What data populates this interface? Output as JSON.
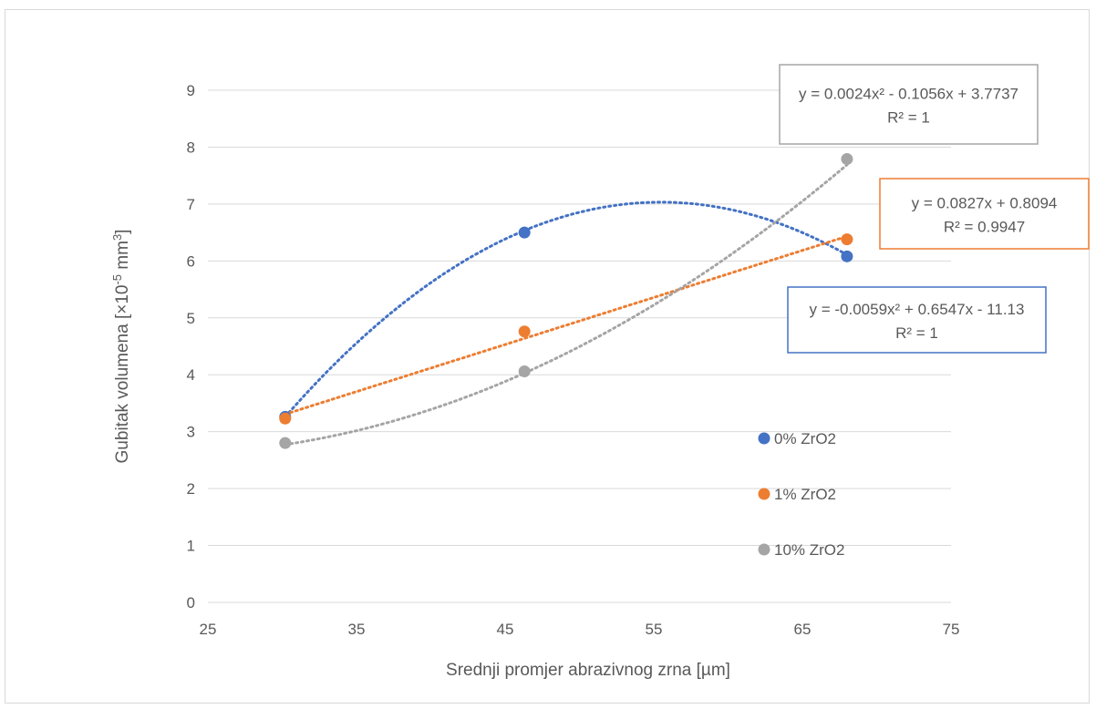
{
  "chart_data": {
    "type": "scatter",
    "title": "",
    "xlabel": "Srednji promjer abrazivnog zrna [µm]",
    "ylabel": "Gubitak volumena [×10",
    "ylabel_sup": "-5",
    "ylabel_unit": " mm",
    "ylabel_unit_sup": "3",
    "ylabel_close": "]",
    "xlim": [
      25,
      75
    ],
    "ylim": [
      0,
      9
    ],
    "xticks": [
      25,
      35,
      45,
      55,
      65,
      75
    ],
    "yticks": [
      0,
      1,
      2,
      3,
      4,
      5,
      6,
      7,
      8,
      9
    ],
    "grid": "horizontal",
    "legend_position": "inside-right",
    "series": [
      {
        "name": "0% ZrO2",
        "color": "#4472c4",
        "x": [
          30.2,
          46.3,
          68
        ],
        "y": [
          3.26,
          6.5,
          6.08
        ],
        "trendline": {
          "type": "polynomial",
          "coef": [
            -0.0059,
            0.6547,
            -11.13
          ],
          "equation": "y = -0.0059x² + 0.6547x - 11.13",
          "r2": "R² = 1"
        }
      },
      {
        "name": "1% ZrO2",
        "color": "#ed7d31",
        "x": [
          30.2,
          46.3,
          68
        ],
        "y": [
          3.23,
          4.76,
          6.38
        ],
        "trendline": {
          "type": "linear",
          "coef": [
            0.0827,
            0.8094
          ],
          "equation": "y = 0.0827x + 0.8094",
          "r2": "R² = 0.9947"
        }
      },
      {
        "name": "10% ZrO2",
        "color": "#a5a5a5",
        "x": [
          30.2,
          46.3,
          68
        ],
        "y": [
          2.8,
          4.06,
          7.79
        ],
        "trendline": {
          "type": "polynomial",
          "coef": [
            0.0024,
            -0.1056,
            3.7737
          ],
          "equation": "y = 0.0024x² - 0.1056x + 3.7737",
          "r2": "R² = 1"
        }
      }
    ]
  }
}
